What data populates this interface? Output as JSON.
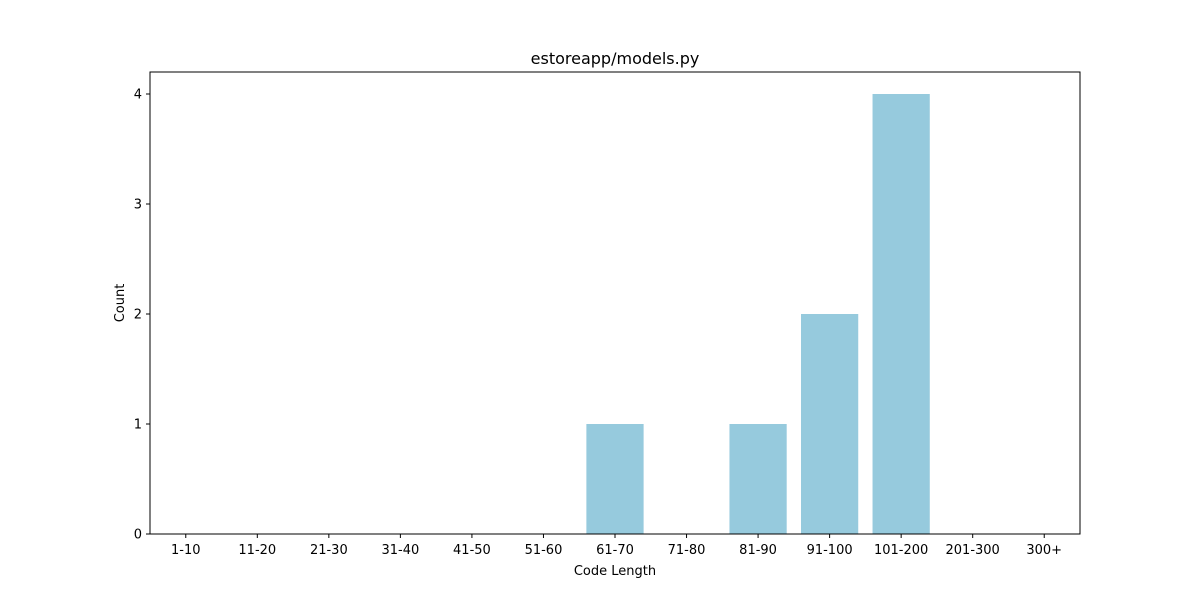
{
  "chart_data": {
    "type": "bar",
    "title": "estoreapp/models.py",
    "xlabel": "Code Length",
    "ylabel": "Count",
    "categories": [
      "1-10",
      "11-20",
      "21-30",
      "31-40",
      "41-50",
      "51-60",
      "61-70",
      "71-80",
      "81-90",
      "91-100",
      "101-200",
      "201-300",
      "300+"
    ],
    "values": [
      0,
      0,
      0,
      0,
      0,
      0,
      1,
      0,
      1,
      2,
      4,
      0,
      0
    ],
    "yticks": [
      0,
      1,
      2,
      3,
      4
    ],
    "ylim": [
      0,
      4.2
    ],
    "bar_color": "#96cadd",
    "grid": false,
    "legend": false
  }
}
